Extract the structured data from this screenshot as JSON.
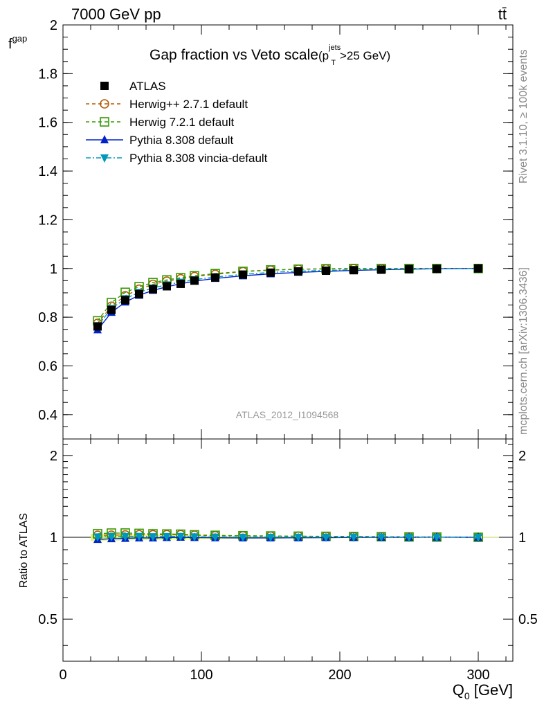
{
  "header": {
    "energy_label": "7000 GeV pp",
    "process_label": "tt̄"
  },
  "side_labels": {
    "rivet": "Rivet 3.1.10, ≥ 100k events",
    "source": "mcplots.cern.ch [arXiv:1306.3436]"
  },
  "watermark": "ATLAS_2012_I1094568",
  "chart_data": {
    "type": "line",
    "title": "Gap fraction vs Veto scale",
    "title_suffix": {
      "open": "(p",
      "sup": "jets",
      "sub": "T",
      "close": ">25 GeV)"
    },
    "xlabel": {
      "main": "Q",
      "sub": "0",
      "unit": " [GeV]"
    },
    "ylabel": {
      "main": "f",
      "sub": "gap"
    },
    "ratio_ylabel": "Ratio to ATLAS",
    "xlim": [
      0,
      325
    ],
    "ylim": [
      0.3,
      2.0
    ],
    "ratio_ylim": [
      0.35,
      2.3
    ],
    "x_ticks": [
      "0",
      "100",
      "200",
      "300"
    ],
    "y_ticks": [
      "0.4",
      "0.6",
      "0.8",
      "1",
      "1.2",
      "1.4",
      "1.6",
      "1.8",
      "2"
    ],
    "ratio_y_ticks": [
      "0.5",
      "1",
      "2"
    ],
    "x": [
      25,
      35,
      45,
      55,
      65,
      75,
      85,
      95,
      110,
      130,
      150,
      170,
      190,
      210,
      230,
      250,
      270,
      300
    ],
    "series": [
      {
        "name": "ATLAS",
        "color": "#000000",
        "marker": "square-filled",
        "values": [
          0.762,
          0.83,
          0.87,
          0.895,
          0.915,
          0.927,
          0.937,
          0.95,
          0.963,
          0.975,
          0.983,
          0.988,
          0.991,
          0.993,
          0.995,
          0.997,
          0.998,
          1.0
        ]
      },
      {
        "name": "Herwig++ 2.7.1 default",
        "color": "#b35900",
        "marker": "circle-open",
        "line": "dashed",
        "values": [
          0.775,
          0.845,
          0.888,
          0.915,
          0.935,
          0.948,
          0.958,
          0.967,
          0.976,
          0.987,
          0.993,
          0.997,
          0.998,
          0.999,
          0.9995,
          0.9998,
          1.0,
          1.0
        ]
      },
      {
        "name": "Herwig 7.2.1 default",
        "color": "#339900",
        "marker": "square-open",
        "line": "dashed",
        "values": [
          0.785,
          0.86,
          0.902,
          0.925,
          0.942,
          0.953,
          0.962,
          0.97,
          0.979,
          0.988,
          0.994,
          0.997,
          0.999,
          1.0,
          1.0,
          1.0,
          1.0,
          1.0
        ]
      },
      {
        "name": "Pythia 8.308 default",
        "color": "#0022cc",
        "marker": "triangle-up-filled",
        "line": "solid",
        "values": [
          0.748,
          0.82,
          0.862,
          0.89,
          0.91,
          0.925,
          0.937,
          0.948,
          0.959,
          0.97,
          0.978,
          0.984,
          0.988,
          0.992,
          0.995,
          0.997,
          0.999,
          1.0
        ]
      },
      {
        "name": "Pythia 8.308 vincia-default",
        "color": "#0099bb",
        "marker": "triangle-down-filled",
        "line": "dashdot",
        "values": [
          0.765,
          0.835,
          0.876,
          0.902,
          0.92,
          0.933,
          0.944,
          0.954,
          0.965,
          0.976,
          0.984,
          0.989,
          0.992,
          0.995,
          0.997,
          0.998,
          0.999,
          1.0
        ]
      }
    ],
    "legend_position": "top-left"
  }
}
